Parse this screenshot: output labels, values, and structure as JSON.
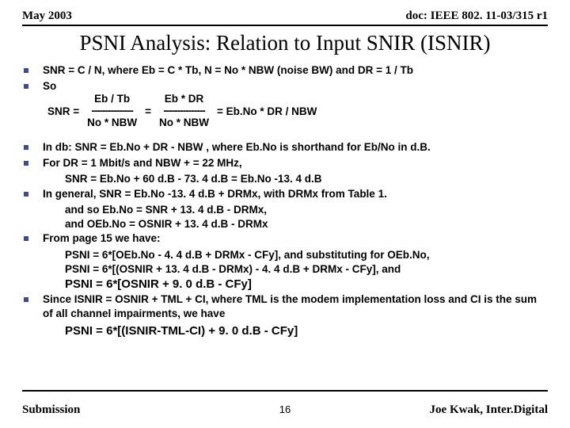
{
  "header": {
    "left": "May 2003",
    "right": "doc: IEEE 802. 11-03/315 r1"
  },
  "title": "PSNI Analysis: Relation to Input SNIR (ISNIR)",
  "b1": "SNR = C / N,  where  Eb = C * Tb,   N = No * NBW  (noise BW) and  DR = 1 / Tb",
  "b2": "So",
  "eq": {
    "lhs": "SNR   =",
    "f1top": "Eb / Tb",
    "f1mid": "---------------",
    "f1bot": "No * NBW",
    "eq1": "=",
    "f2top": "Eb * DR",
    "f2mid": "---------------",
    "f2bot": "No  * NBW",
    "rhs": "=   Eb.No * DR / NBW"
  },
  "b3": "In db:  SNR = Eb.No + DR - NBW ,  where Eb.No is shorthand for Eb/No in d.B.",
  "b4": "For DR = 1 Mbit/s and NBW + = 22 MHz,",
  "b4a": "SNR = Eb.No + 60 d.B - 73. 4 d.B = Eb.No -13. 4 d.B",
  "b5": "In general,   SNR = Eb.No -13. 4 d.B + DRMx,   with DRMx from Table 1.",
  "b5a": "and so   Eb.No  =          SNR  + 13. 4 d.B - DRMx,",
  "b5b": "and       OEb.No =         OSNIR + 13. 4 d.B - DRMx",
  "b6": "From page 15 we have:",
  "b6a": "PSNI = 6*[OEb.No - 4. 4 d.B  + DRMx - CFy],   and substituting for OEb.No,",
  "b6b": "PSNI = 6*[(OSNIR + 13. 4 d.B - DRMx) - 4. 4 d.B + DRMx - CFy], and",
  "b6c": "PSNI = 6*[OSNIR + 9. 0 d.B - CFy]",
  "b7": "Since ISNIR = OSNIR + TML + CI, where TML is the modem implementation loss and CI is the sum of all channel impairments, we have",
  "b7a": "PSNI = 6*[(ISNIR-TML-CI) + 9. 0 d.B - CFy]",
  "footer": {
    "left": "Submission",
    "page": "16",
    "right": "Joe Kwak, Inter.Digital"
  }
}
